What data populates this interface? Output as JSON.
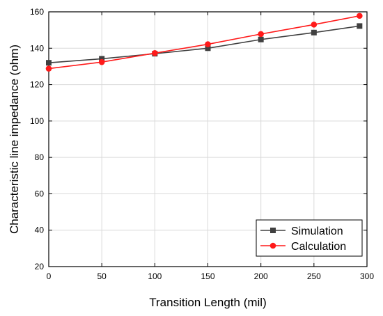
{
  "chart_data": {
    "type": "line",
    "title": "",
    "xlabel": "Transition Length (mil)",
    "ylabel": "Characteristic line impedance (ohm)",
    "xlim": [
      0,
      300
    ],
    "ylim": [
      20,
      160
    ],
    "xticks": [
      0,
      50,
      100,
      150,
      200,
      250,
      300
    ],
    "yticks": [
      20,
      40,
      60,
      80,
      100,
      120,
      140,
      160
    ],
    "grid": true,
    "legend_position": "bottom-right",
    "series": [
      {
        "name": "Simulation",
        "color": "#404040",
        "marker": "square",
        "x": [
          0,
          50,
          100,
          150,
          200,
          250,
          293
        ],
        "y": [
          132,
          134.2,
          137,
          140,
          144.8,
          148.6,
          152.2
        ]
      },
      {
        "name": "Calculation",
        "color": "#ff1a1a",
        "marker": "circle",
        "x": [
          0,
          50,
          100,
          150,
          200,
          250,
          293
        ],
        "y": [
          128.8,
          132.4,
          137.3,
          142.2,
          147.8,
          153,
          157.8
        ]
      }
    ]
  }
}
